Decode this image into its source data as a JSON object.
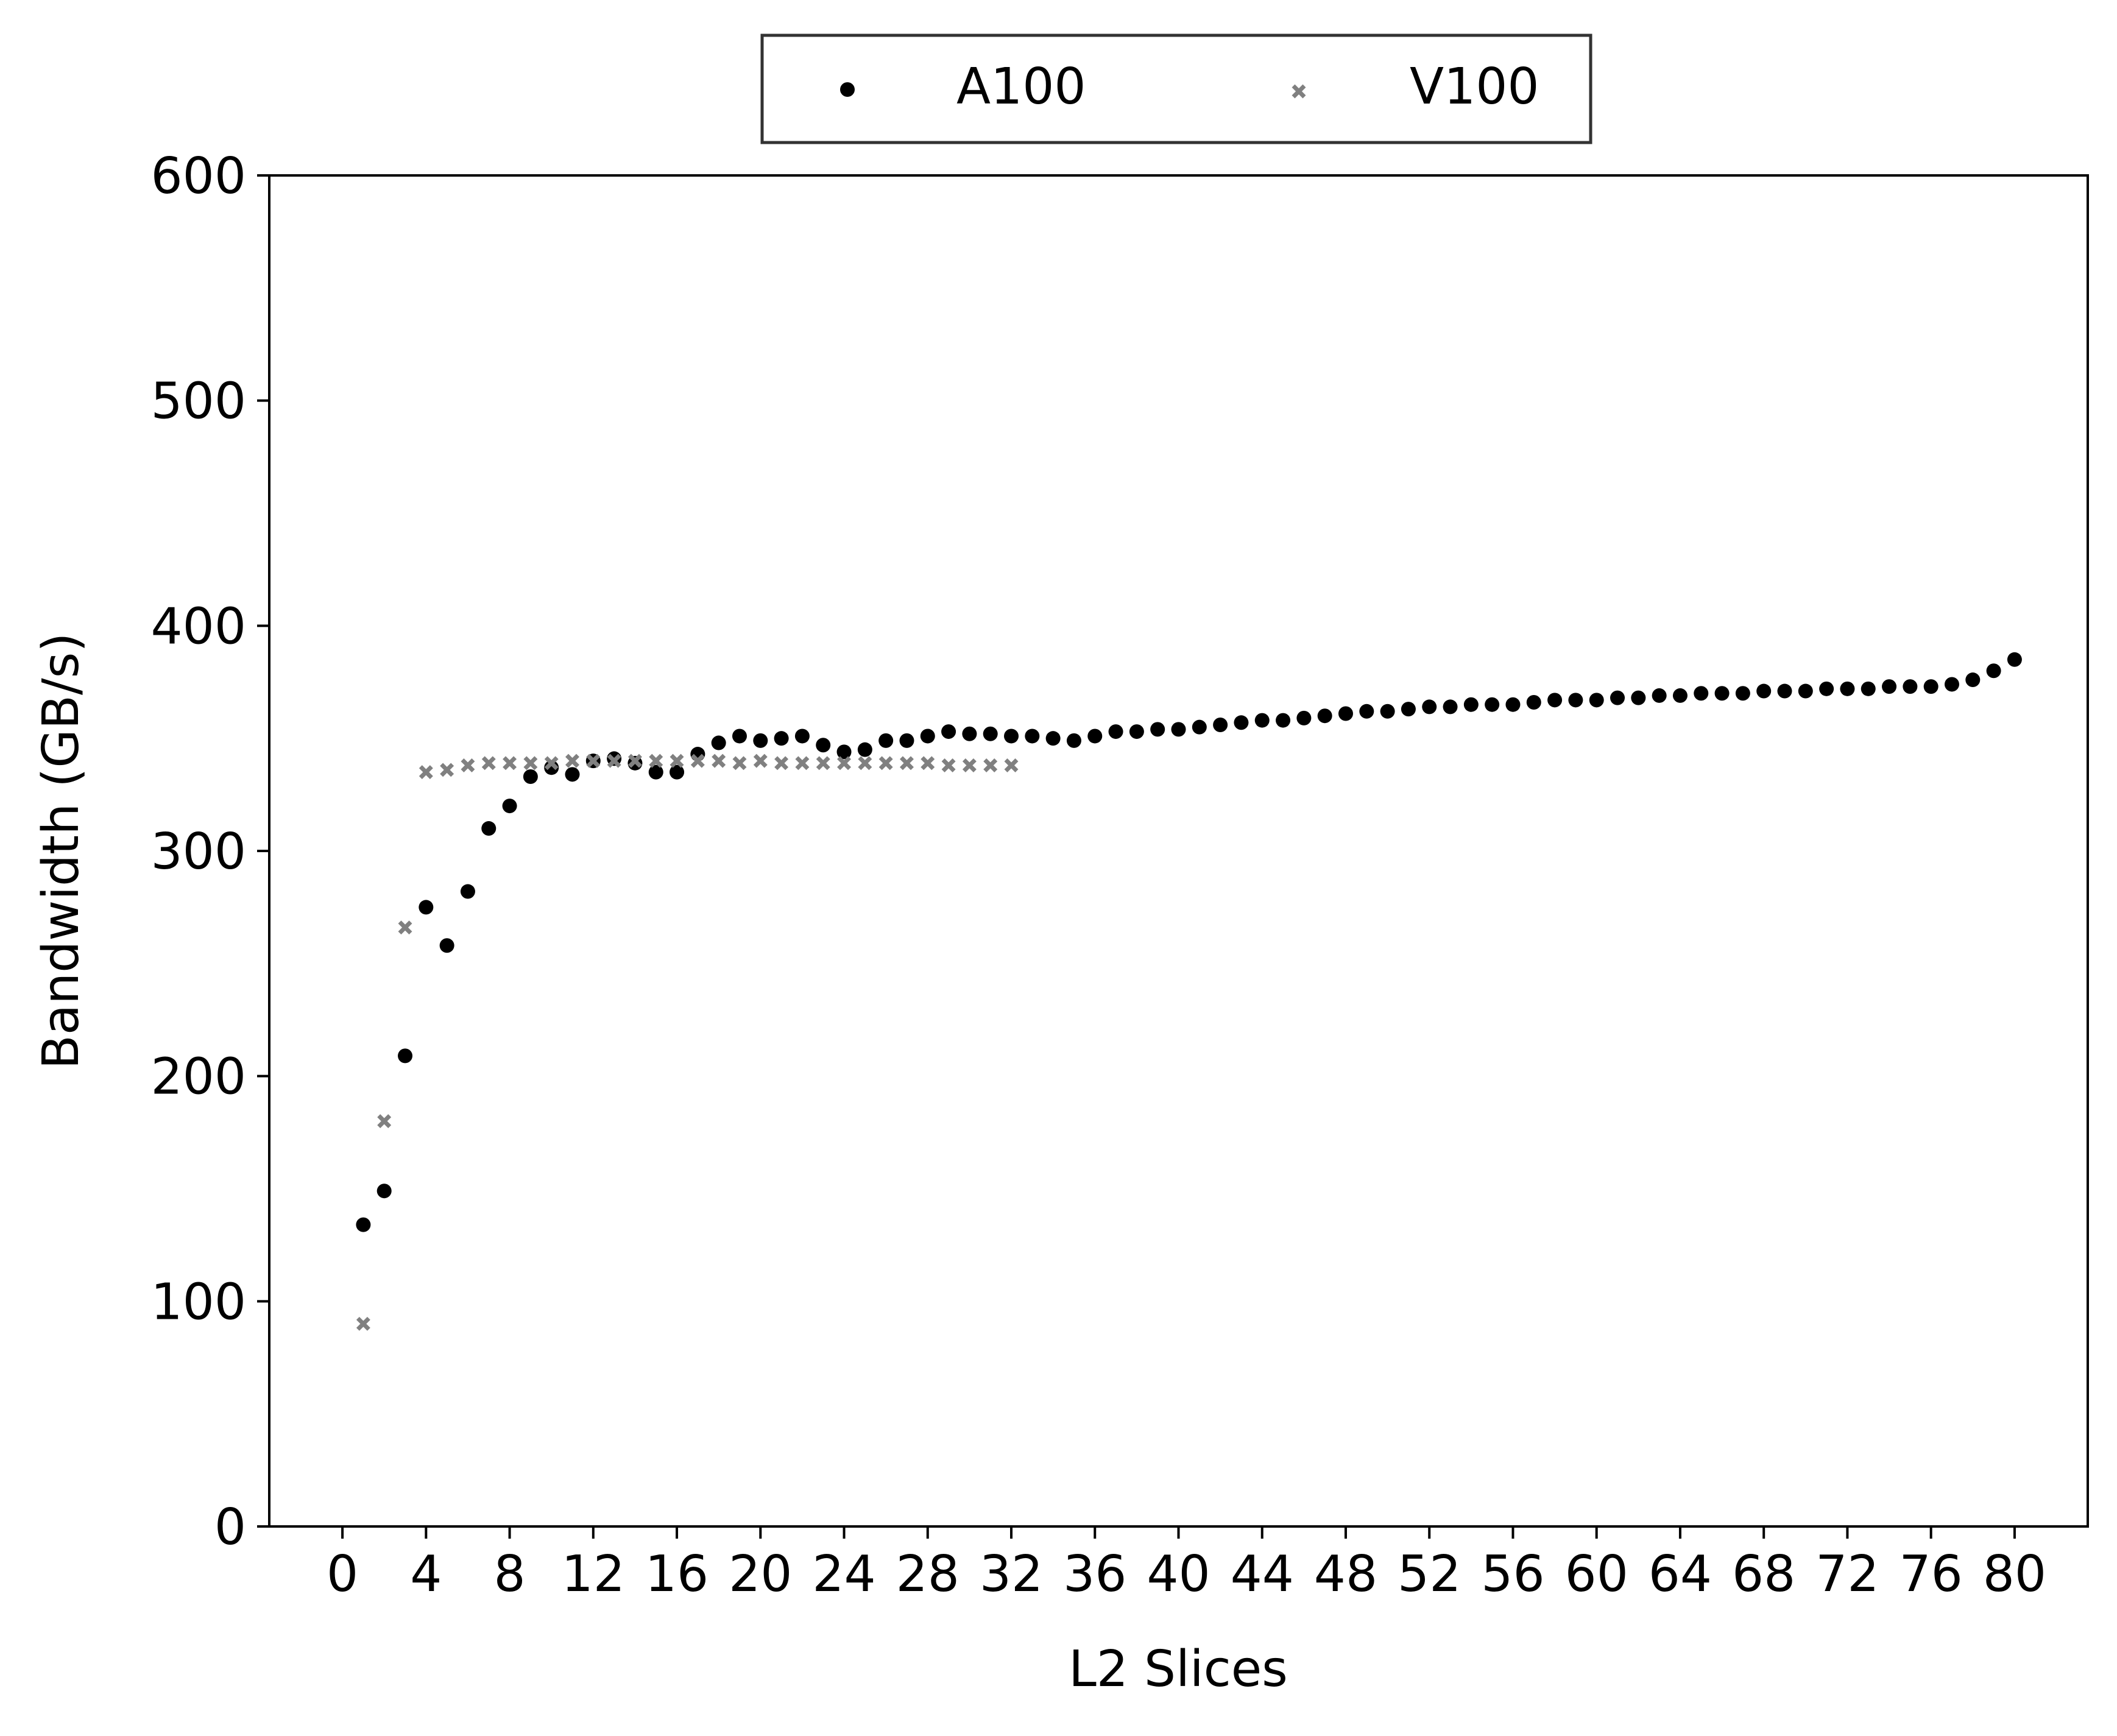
{
  "chart_data": {
    "type": "scatter",
    "title": "",
    "xlabel": "L2 Slices",
    "ylabel": "Bandwidth (GB/s)",
    "xlim": [
      -3.5,
      83.5
    ],
    "ylim": [
      0,
      600
    ],
    "xticks": [
      0,
      4,
      8,
      12,
      16,
      20,
      24,
      28,
      32,
      36,
      40,
      44,
      48,
      52,
      56,
      60,
      64,
      68,
      72,
      76,
      80
    ],
    "yticks": [
      0,
      100,
      200,
      300,
      400,
      500,
      600
    ],
    "grid": false,
    "legend": {
      "placement": "top-center-outside"
    },
    "series": [
      {
        "name": "A100",
        "marker": "circle",
        "color": "#000000",
        "x": [
          1,
          2,
          3,
          4,
          5,
          6,
          7,
          8,
          9,
          10,
          11,
          12,
          13,
          14,
          15,
          16,
          17,
          18,
          19,
          20,
          21,
          22,
          23,
          24,
          25,
          26,
          27,
          28,
          29,
          30,
          31,
          32,
          33,
          34,
          35,
          36,
          37,
          38,
          39,
          40,
          41,
          42,
          43,
          44,
          45,
          46,
          47,
          48,
          49,
          50,
          51,
          52,
          53,
          54,
          55,
          56,
          57,
          58,
          59,
          60,
          61,
          62,
          63,
          64,
          65,
          66,
          67,
          68,
          69,
          70,
          71,
          72,
          73,
          74,
          75,
          76,
          77,
          78,
          79,
          80
        ],
        "values": [
          134,
          149,
          209,
          275,
          258,
          282,
          310,
          320,
          333,
          337,
          334,
          340,
          341,
          339,
          335,
          335,
          343,
          348,
          351,
          349,
          350,
          351,
          347,
          344,
          345,
          349,
          349,
          351,
          353,
          352,
          352,
          351,
          351,
          350,
          349,
          351,
          353,
          353,
          354,
          354,
          355,
          356,
          357,
          358,
          358,
          359,
          360,
          361,
          362,
          362,
          363,
          364,
          364,
          365,
          365,
          365,
          366,
          367,
          367,
          367,
          368,
          368,
          369,
          369,
          370,
          370,
          370,
          371,
          371,
          371,
          372,
          372,
          372,
          373,
          373,
          373,
          374,
          376,
          380,
          385
        ]
      },
      {
        "name": "V100",
        "marker": "x",
        "color": "#808080",
        "x": [
          1,
          2,
          3,
          4,
          5,
          6,
          7,
          8,
          9,
          10,
          11,
          12,
          13,
          14,
          15,
          16,
          17,
          18,
          19,
          20,
          21,
          22,
          23,
          24,
          25,
          26,
          27,
          28,
          29,
          30,
          31,
          32
        ],
        "values": [
          90,
          180,
          266,
          335,
          336,
          338,
          339,
          339,
          339,
          339,
          340,
          340,
          340,
          340,
          340,
          340,
          340,
          340,
          339,
          340,
          339,
          339,
          339,
          339,
          339,
          339,
          339,
          339,
          338,
          338,
          338,
          338
        ]
      }
    ]
  }
}
